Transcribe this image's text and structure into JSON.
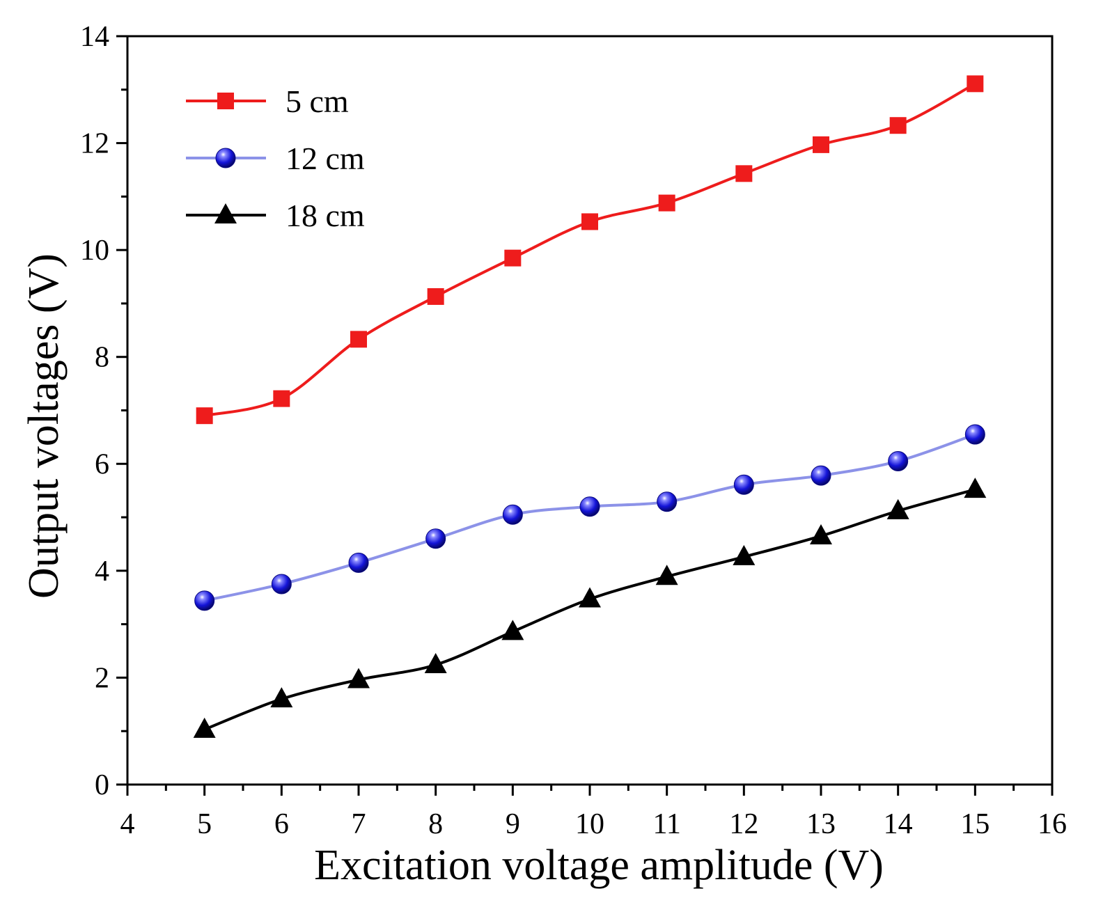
{
  "chart_data": {
    "type": "line",
    "xlabel": "Excitation voltage amplitude (V)",
    "ylabel": "Output voltages (V)",
    "xlim": [
      4,
      16
    ],
    "ylim": [
      0,
      14
    ],
    "xticks": [
      4,
      5,
      6,
      7,
      8,
      9,
      10,
      11,
      12,
      13,
      14,
      15,
      16
    ],
    "yticks": [
      0,
      2,
      4,
      6,
      8,
      10,
      12,
      14
    ],
    "grid": false,
    "legend_position": "top-left",
    "x": [
      5,
      6,
      7,
      8,
      9,
      10,
      11,
      12,
      13,
      14,
      15
    ],
    "series": [
      {
        "name": "5 cm",
        "color": "#ee1c1c",
        "marker": "square",
        "values": [
          6.9,
          7.22,
          8.33,
          9.13,
          9.85,
          10.53,
          10.88,
          11.43,
          11.97,
          12.33,
          13.11
        ]
      },
      {
        "name": "12 cm",
        "color": "#8c92e8",
        "marker": "sphere",
        "marker_color": "#1a1ad6",
        "values": [
          3.44,
          3.75,
          4.15,
          4.6,
          5.05,
          5.2,
          5.29,
          5.61,
          5.78,
          6.05,
          6.55
        ]
      },
      {
        "name": "18 cm",
        "color": "#000000",
        "marker": "triangle",
        "values": [
          1.03,
          1.6,
          1.96,
          2.24,
          2.86,
          3.47,
          3.89,
          4.26,
          4.65,
          5.12,
          5.52
        ]
      }
    ]
  }
}
